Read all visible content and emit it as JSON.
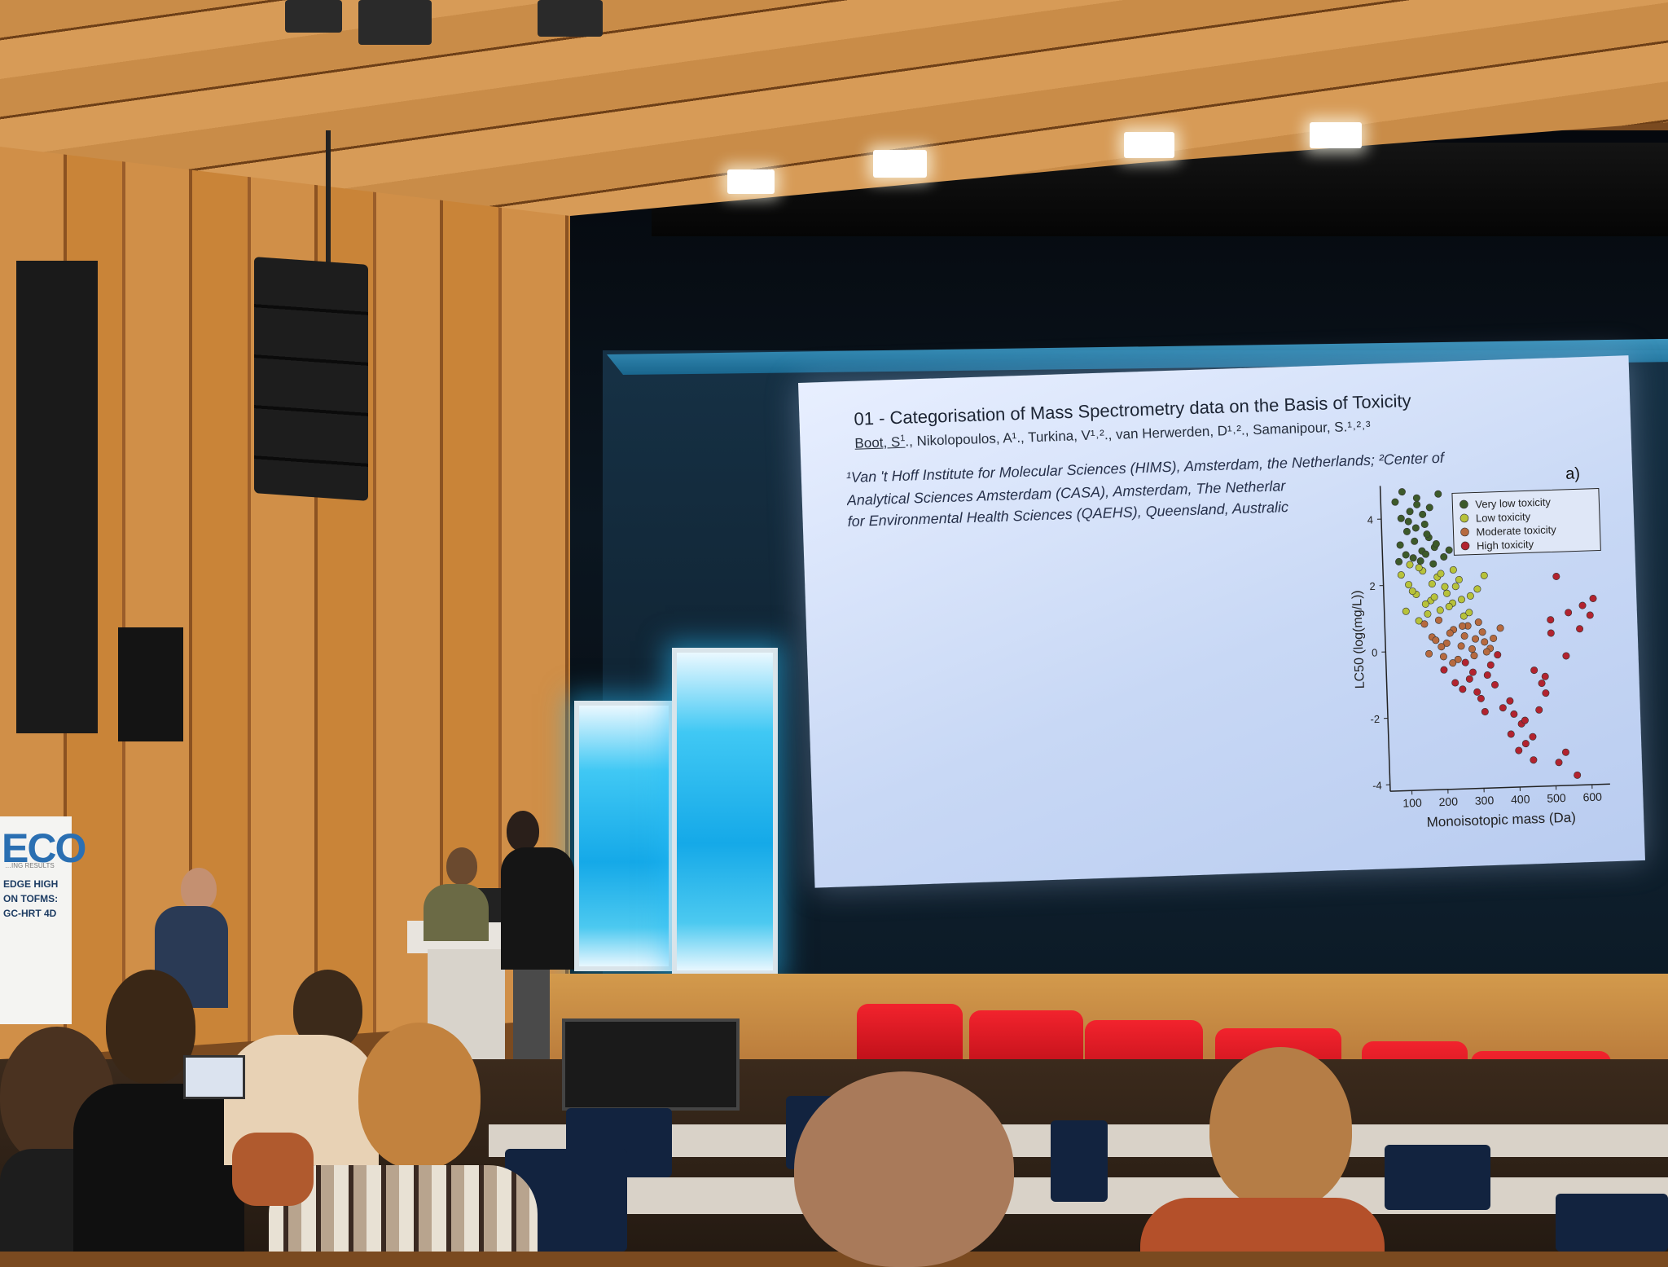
{
  "banner": {
    "logo": "ECO",
    "subtitle": "…ING RESULTS",
    "lines": [
      "EDGE HIGH",
      "ON TOFMS:",
      "GC-HRT 4D"
    ]
  },
  "slide": {
    "title": "01 - Categorisation of Mass Spectrometry data on the Basis of Toxicity",
    "authors_first": "Boot, S",
    "authors_first_sup": "1",
    "authors_rest": "., Nikolopoulos, A¹., Turkina, V¹˒²., van Herwerden, D¹˒²., Samanipour, S.¹˒²˒³",
    "affiliation_1": "¹Van 't Hoff Institute for Molecular Sciences (HIMS), Amsterdam, the Netherlands; ²Center of",
    "affiliation_2": "Analytical Sciences Amsterdam (CASA), Amsterdam, The Netherlar",
    "affiliation_3": "for Environmental Health Sciences (QAEHS), Queensland, Australic",
    "panel_label": "a)"
  },
  "chart_data": {
    "type": "scatter",
    "xlabel": "Monoisotopic mass (Da)",
    "ylabel": "LC50 (log(mg/L))",
    "xlim": [
      40,
      650
    ],
    "ylim": [
      -4.2,
      5
    ],
    "xticks": [
      100,
      200,
      300,
      400,
      500,
      600
    ],
    "yticks": [
      -4,
      -2,
      0,
      2,
      4
    ],
    "legend_position": "top-right",
    "series": [
      {
        "name": "Very low toxicity",
        "color": "#3d5a2a",
        "x": [
          80,
          95,
          110,
          120,
          130,
          140,
          150,
          160,
          170,
          185,
          90,
          105,
          125,
          135,
          145,
          155,
          165,
          180,
          100,
          115,
          140,
          160,
          175,
          190,
          210,
          225,
          85,
          200
        ],
        "y": [
          4.5,
          4.0,
          3.6,
          4.2,
          3.3,
          4.6,
          3.0,
          3.8,
          3.4,
          3.1,
          3.2,
          2.9,
          2.8,
          3.7,
          2.7,
          4.1,
          3.5,
          2.6,
          4.8,
          3.9,
          4.4,
          2.9,
          4.3,
          3.2,
          2.8,
          3.0,
          2.7,
          4.7
        ]
      },
      {
        "name": "Low toxicity",
        "color": "#b7c23a",
        "x": [
          90,
          110,
          130,
          150,
          170,
          190,
          210,
          230,
          250,
          100,
          120,
          140,
          160,
          180,
          200,
          220,
          240,
          260,
          280,
          115,
          135,
          155,
          175,
          195,
          215,
          235,
          255,
          275,
          300,
          320
        ],
        "y": [
          2.3,
          2.0,
          1.7,
          2.4,
          1.5,
          2.2,
          1.9,
          1.4,
          2.1,
          1.2,
          1.8,
          2.5,
          1.1,
          1.6,
          2.3,
          1.3,
          1.9,
          1.0,
          1.6,
          2.6,
          0.9,
          1.4,
          2.0,
          1.2,
          1.7,
          2.4,
          1.5,
          1.1,
          1.8,
          2.2
        ]
      },
      {
        "name": "Moderate toxicity",
        "color": "#b66a3f",
        "x": [
          150,
          170,
          190,
          210,
          230,
          250,
          270,
          290,
          310,
          330,
          160,
          180,
          200,
          220,
          240,
          260,
          280,
          300,
          320,
          340,
          360,
          195,
          225,
          255,
          285,
          315
        ],
        "y": [
          0.8,
          0.4,
          0.9,
          0.2,
          0.6,
          0.1,
          0.7,
          0.3,
          0.5,
          0.0,
          -0.1,
          0.3,
          -0.2,
          0.5,
          -0.3,
          0.4,
          0.0,
          0.8,
          -0.1,
          0.3,
          0.6,
          0.1,
          -0.4,
          0.7,
          -0.2,
          0.2
        ]
      },
      {
        "name": "High toxicity",
        "color": "#b2232f",
        "x": [
          200,
          230,
          260,
          290,
          320,
          350,
          380,
          410,
          440,
          470,
          500,
          530,
          560,
          590,
          620,
          270,
          300,
          330,
          360,
          390,
          420,
          450,
          480,
          510,
          540,
          380,
          400,
          420,
          440,
          460,
          480,
          500,
          520,
          550,
          580,
          610,
          250,
          280,
          310,
          340
        ],
        "y": [
          -0.6,
          -1.0,
          -0.4,
          -1.3,
          -0.8,
          -0.2,
          -1.6,
          -2.3,
          -2.7,
          -1.1,
          0.4,
          -3.2,
          -3.9,
          1.2,
          1.4,
          -0.9,
          -1.5,
          -0.5,
          -1.8,
          -2.0,
          -2.9,
          -0.7,
          -1.4,
          -3.5,
          -0.3,
          -2.6,
          -3.1,
          -2.2,
          -3.4,
          -1.9,
          -0.9,
          0.8,
          2.1,
          1.0,
          0.5,
          0.9,
          -1.2,
          -0.7,
          -1.9,
          -1.1
        ]
      }
    ]
  }
}
